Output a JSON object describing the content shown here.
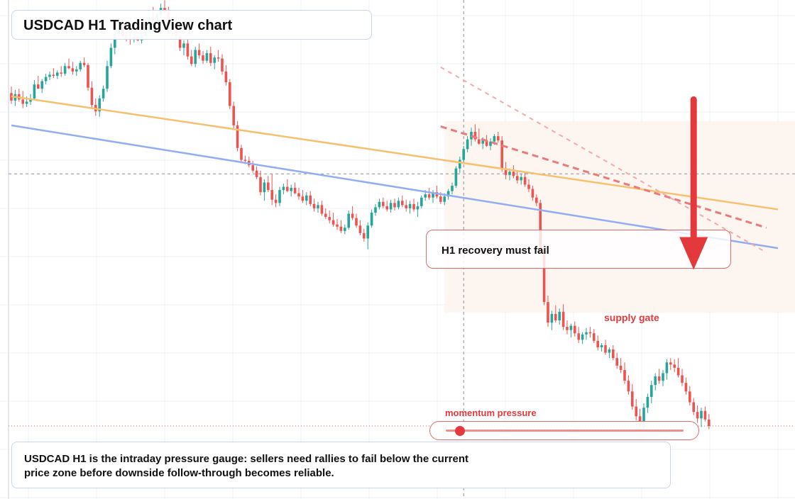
{
  "chart_title": "USDCAD H1 TradingView chart",
  "note": "USDCAD H1 is the intraday pressure gauge: sellers need rallies to fail below the current price zone before downside follow-through becomes reliable.",
  "recovery_label": "H1 recovery must fail",
  "supply_label": "supply gate",
  "momentum_label": "momentum pressure",
  "momentum_level": 0.06,
  "colors": {
    "bull": "#26a69a",
    "bear": "#ef5350",
    "orange_line": "#f7c070",
    "blue_line": "#93aef0",
    "annotation_red": "#e3393c",
    "supply_zone": "#fdf3ec",
    "grid": "#eef1f5"
  },
  "chart_data": {
    "type": "candlestick",
    "title": "USDCAD H1 TradingView chart",
    "candles": [
      {
        "o": 13.6,
        "h": 14.2,
        "l": 12.6,
        "c": 12.9
      },
      {
        "o": 12.9,
        "h": 13.9,
        "l": 12.4,
        "c": 13.5
      },
      {
        "o": 13.5,
        "h": 14.0,
        "l": 12.8,
        "c": 13.0
      },
      {
        "o": 13.0,
        "h": 13.8,
        "l": 12.2,
        "c": 12.6
      },
      {
        "o": 12.6,
        "h": 13.3,
        "l": 12.3,
        "c": 12.8
      },
      {
        "o": 12.8,
        "h": 13.5,
        "l": 12.5,
        "c": 13.1
      },
      {
        "o": 13.1,
        "h": 14.8,
        "l": 13.0,
        "c": 14.4
      },
      {
        "o": 14.4,
        "h": 15.2,
        "l": 14.0,
        "c": 14.0
      },
      {
        "o": 14.0,
        "h": 14.9,
        "l": 13.6,
        "c": 14.7
      },
      {
        "o": 14.7,
        "h": 15.4,
        "l": 14.4,
        "c": 15.1
      },
      {
        "o": 15.1,
        "h": 15.6,
        "l": 14.8,
        "c": 15.3
      },
      {
        "o": 15.3,
        "h": 15.9,
        "l": 15.0,
        "c": 15.2
      },
      {
        "o": 15.2,
        "h": 15.7,
        "l": 14.9,
        "c": 15.5
      },
      {
        "o": 15.5,
        "h": 16.1,
        "l": 15.1,
        "c": 15.4
      },
      {
        "o": 15.4,
        "h": 16.4,
        "l": 15.2,
        "c": 16.1
      },
      {
        "o": 16.1,
        "h": 16.8,
        "l": 15.8,
        "c": 15.9
      },
      {
        "o": 15.9,
        "h": 16.5,
        "l": 15.3,
        "c": 15.6
      },
      {
        "o": 15.6,
        "h": 16.1,
        "l": 15.2,
        "c": 15.8
      },
      {
        "o": 15.8,
        "h": 16.6,
        "l": 15.6,
        "c": 16.4
      },
      {
        "o": 16.4,
        "h": 16.9,
        "l": 16.0,
        "c": 16.2
      },
      {
        "o": 16.2,
        "h": 16.4,
        "l": 13.8,
        "c": 14.1
      },
      {
        "o": 14.1,
        "h": 14.7,
        "l": 12.2,
        "c": 12.5
      },
      {
        "o": 12.5,
        "h": 13.1,
        "l": 11.5,
        "c": 11.9
      },
      {
        "o": 11.9,
        "h": 13.4,
        "l": 11.4,
        "c": 13.1
      },
      {
        "o": 13.1,
        "h": 14.3,
        "l": 12.8,
        "c": 14.0
      },
      {
        "o": 14.0,
        "h": 16.6,
        "l": 13.7,
        "c": 16.1
      },
      {
        "o": 16.1,
        "h": 18.2,
        "l": 15.9,
        "c": 17.8
      },
      {
        "o": 17.8,
        "h": 19.6,
        "l": 17.2,
        "c": 19.1
      },
      {
        "o": 19.1,
        "h": 20.3,
        "l": 18.7,
        "c": 19.6
      },
      {
        "o": 19.6,
        "h": 20.4,
        "l": 18.8,
        "c": 18.9
      },
      {
        "o": 18.9,
        "h": 19.5,
        "l": 18.4,
        "c": 18.7
      },
      {
        "o": 18.7,
        "h": 19.2,
        "l": 18.1,
        "c": 18.6
      },
      {
        "o": 18.6,
        "h": 19.1,
        "l": 18.3,
        "c": 18.8
      },
      {
        "o": 18.8,
        "h": 19.3,
        "l": 18.4,
        "c": 18.5
      },
      {
        "o": 18.5,
        "h": 19.2,
        "l": 18.2,
        "c": 18.9
      },
      {
        "o": 18.9,
        "h": 19.8,
        "l": 18.6,
        "c": 19.5
      },
      {
        "o": 19.5,
        "h": 20.8,
        "l": 19.2,
        "c": 20.5
      },
      {
        "o": 20.5,
        "h": 21.6,
        "l": 20.0,
        "c": 20.3
      },
      {
        "o": 20.3,
        "h": 21.1,
        "l": 19.9,
        "c": 20.9
      },
      {
        "o": 20.9,
        "h": 21.9,
        "l": 20.5,
        "c": 21.5
      },
      {
        "o": 21.5,
        "h": 22.2,
        "l": 20.9,
        "c": 21.1
      },
      {
        "o": 21.1,
        "h": 21.6,
        "l": 19.3,
        "c": 19.6
      },
      {
        "o": 19.6,
        "h": 20.4,
        "l": 18.8,
        "c": 20.1
      },
      {
        "o": 20.1,
        "h": 20.8,
        "l": 18.6,
        "c": 18.9
      },
      {
        "o": 18.9,
        "h": 19.8,
        "l": 17.5,
        "c": 17.8
      },
      {
        "o": 17.8,
        "h": 18.5,
        "l": 17.1,
        "c": 18.2
      },
      {
        "o": 18.2,
        "h": 18.7,
        "l": 16.7,
        "c": 17.0
      },
      {
        "o": 17.0,
        "h": 17.6,
        "l": 16.1,
        "c": 16.3
      },
      {
        "o": 16.3,
        "h": 17.9,
        "l": 16.0,
        "c": 17.6
      },
      {
        "o": 17.6,
        "h": 18.2,
        "l": 16.8,
        "c": 17.1
      },
      {
        "o": 17.1,
        "h": 17.5,
        "l": 16.3,
        "c": 16.6
      },
      {
        "o": 16.6,
        "h": 17.6,
        "l": 16.4,
        "c": 17.3
      },
      {
        "o": 17.3,
        "h": 17.9,
        "l": 16.1,
        "c": 16.4
      },
      {
        "o": 16.4,
        "h": 17.1,
        "l": 15.8,
        "c": 16.9
      },
      {
        "o": 16.9,
        "h": 17.6,
        "l": 16.5,
        "c": 16.8
      },
      {
        "o": 16.8,
        "h": 17.2,
        "l": 15.3,
        "c": 15.6
      },
      {
        "o": 15.6,
        "h": 16.2,
        "l": 14.3,
        "c": 14.6
      },
      {
        "o": 14.6,
        "h": 14.9,
        "l": 12.1,
        "c": 12.4
      },
      {
        "o": 12.4,
        "h": 12.8,
        "l": 10.3,
        "c": 10.6
      },
      {
        "o": 10.6,
        "h": 11.0,
        "l": 8.2,
        "c": 8.5
      },
      {
        "o": 8.5,
        "h": 8.8,
        "l": 7.1,
        "c": 7.4
      },
      {
        "o": 7.4,
        "h": 7.8,
        "l": 7.0,
        "c": 7.3
      },
      {
        "o": 7.3,
        "h": 7.7,
        "l": 6.7,
        "c": 6.9
      },
      {
        "o": 6.9,
        "h": 7.3,
        "l": 6.2,
        "c": 6.4
      },
      {
        "o": 6.4,
        "h": 6.8,
        "l": 5.6,
        "c": 5.8
      },
      {
        "o": 5.8,
        "h": 6.4,
        "l": 4.1,
        "c": 4.4
      },
      {
        "o": 4.4,
        "h": 5.6,
        "l": 3.6,
        "c": 5.3
      },
      {
        "o": 5.3,
        "h": 5.9,
        "l": 4.4,
        "c": 4.6
      },
      {
        "o": 4.6,
        "h": 6.1,
        "l": 3.2,
        "c": 3.7
      },
      {
        "o": 3.7,
        "h": 4.2,
        "l": 3.0,
        "c": 3.4
      },
      {
        "o": 3.4,
        "h": 4.9,
        "l": 3.1,
        "c": 4.6
      },
      {
        "o": 4.6,
        "h": 5.2,
        "l": 4.2,
        "c": 4.9
      },
      {
        "o": 4.9,
        "h": 5.6,
        "l": 4.4,
        "c": 4.5
      },
      {
        "o": 4.5,
        "h": 5.1,
        "l": 4.0,
        "c": 4.8
      },
      {
        "o": 4.8,
        "h": 5.3,
        "l": 4.2,
        "c": 4.3
      },
      {
        "o": 4.3,
        "h": 4.8,
        "l": 3.7,
        "c": 4.0
      },
      {
        "o": 4.0,
        "h": 4.6,
        "l": 3.4,
        "c": 3.6
      },
      {
        "o": 3.6,
        "h": 4.4,
        "l": 3.2,
        "c": 4.1
      },
      {
        "o": 4.1,
        "h": 4.5,
        "l": 3.1,
        "c": 3.3
      },
      {
        "o": 3.3,
        "h": 3.8,
        "l": 2.6,
        "c": 2.9
      },
      {
        "o": 2.9,
        "h": 3.5,
        "l": 2.5,
        "c": 3.2
      },
      {
        "o": 3.2,
        "h": 3.6,
        "l": 2.2,
        "c": 2.4
      },
      {
        "o": 2.4,
        "h": 2.9,
        "l": 1.9,
        "c": 2.1
      },
      {
        "o": 2.1,
        "h": 2.7,
        "l": 1.5,
        "c": 1.8
      },
      {
        "o": 1.8,
        "h": 2.5,
        "l": 1.2,
        "c": 1.4
      },
      {
        "o": 1.4,
        "h": 1.9,
        "l": 0.9,
        "c": 1.2
      },
      {
        "o": 1.2,
        "h": 1.8,
        "l": 0.6,
        "c": 0.8
      },
      {
        "o": 0.8,
        "h": 1.4,
        "l": 0.5,
        "c": 1.1
      },
      {
        "o": 1.1,
        "h": 2.7,
        "l": 0.9,
        "c": 2.4
      },
      {
        "o": 2.4,
        "h": 3.1,
        "l": 1.8,
        "c": 2.0
      },
      {
        "o": 2.0,
        "h": 2.4,
        "l": 1.1,
        "c": 1.3
      },
      {
        "o": 1.3,
        "h": 1.8,
        "l": 0.4,
        "c": 0.6
      },
      {
        "o": 0.6,
        "h": 1.0,
        "l": -0.2,
        "c": 0.1
      },
      {
        "o": 0.1,
        "h": 1.6,
        "l": -0.9,
        "c": 1.3
      },
      {
        "o": 1.3,
        "h": 2.8,
        "l": 1.1,
        "c": 2.5
      },
      {
        "o": 2.5,
        "h": 3.3,
        "l": 2.2,
        "c": 3.0
      },
      {
        "o": 3.0,
        "h": 3.8,
        "l": 2.8,
        "c": 3.5
      },
      {
        "o": 3.5,
        "h": 3.9,
        "l": 2.9,
        "c": 3.1
      },
      {
        "o": 3.1,
        "h": 3.6,
        "l": 2.6,
        "c": 2.8
      },
      {
        "o": 2.8,
        "h": 3.7,
        "l": 2.5,
        "c": 3.4
      },
      {
        "o": 3.4,
        "h": 3.8,
        "l": 2.7,
        "c": 3.0
      },
      {
        "o": 3.0,
        "h": 3.9,
        "l": 2.8,
        "c": 3.6
      },
      {
        "o": 3.6,
        "h": 4.1,
        "l": 3.0,
        "c": 3.2
      },
      {
        "o": 3.2,
        "h": 3.7,
        "l": 2.6,
        "c": 2.9
      },
      {
        "o": 2.9,
        "h": 3.6,
        "l": 2.4,
        "c": 3.3
      },
      {
        "o": 3.3,
        "h": 3.8,
        "l": 2.6,
        "c": 2.8
      },
      {
        "o": 2.8,
        "h": 3.5,
        "l": 2.1,
        "c": 3.1
      },
      {
        "o": 3.1,
        "h": 4.1,
        "l": 2.9,
        "c": 3.9
      },
      {
        "o": 3.9,
        "h": 4.6,
        "l": 3.6,
        "c": 4.2
      },
      {
        "o": 4.2,
        "h": 4.8,
        "l": 3.7,
        "c": 3.9
      },
      {
        "o": 3.9,
        "h": 4.6,
        "l": 3.4,
        "c": 4.4
      },
      {
        "o": 4.4,
        "h": 5.0,
        "l": 3.8,
        "c": 4.0
      },
      {
        "o": 4.0,
        "h": 4.4,
        "l": 3.3,
        "c": 3.5
      },
      {
        "o": 3.5,
        "h": 4.3,
        "l": 3.2,
        "c": 4.0
      },
      {
        "o": 4.0,
        "h": 4.7,
        "l": 3.7,
        "c": 4.5
      },
      {
        "o": 4.5,
        "h": 5.3,
        "l": 4.2,
        "c": 5.0
      },
      {
        "o": 5.0,
        "h": 6.8,
        "l": 4.8,
        "c": 6.6
      },
      {
        "o": 6.6,
        "h": 7.7,
        "l": 6.2,
        "c": 7.4
      },
      {
        "o": 7.4,
        "h": 8.7,
        "l": 7.1,
        "c": 8.4
      },
      {
        "o": 8.4,
        "h": 9.6,
        "l": 8.1,
        "c": 9.3
      },
      {
        "o": 9.3,
        "h": 10.4,
        "l": 8.7,
        "c": 10.0
      },
      {
        "o": 10.0,
        "h": 10.7,
        "l": 9.1,
        "c": 9.3
      },
      {
        "o": 9.3,
        "h": 10.3,
        "l": 8.8,
        "c": 8.9
      },
      {
        "o": 8.9,
        "h": 9.5,
        "l": 8.4,
        "c": 9.2
      },
      {
        "o": 9.2,
        "h": 9.7,
        "l": 8.6,
        "c": 8.7
      },
      {
        "o": 8.7,
        "h": 9.4,
        "l": 8.3,
        "c": 9.1
      },
      {
        "o": 9.1,
        "h": 9.8,
        "l": 8.8,
        "c": 9.6
      },
      {
        "o": 9.6,
        "h": 10.0,
        "l": 9.0,
        "c": 9.2
      },
      {
        "o": 9.2,
        "h": 9.6,
        "l": 6.3,
        "c": 6.6
      },
      {
        "o": 6.6,
        "h": 7.2,
        "l": 5.6,
        "c": 6.0
      },
      {
        "o": 6.0,
        "h": 6.6,
        "l": 5.5,
        "c": 6.3
      },
      {
        "o": 6.3,
        "h": 6.9,
        "l": 5.7,
        "c": 5.9
      },
      {
        "o": 5.9,
        "h": 6.4,
        "l": 5.2,
        "c": 5.5
      },
      {
        "o": 5.5,
        "h": 6.1,
        "l": 5.1,
        "c": 5.8
      },
      {
        "o": 5.8,
        "h": 6.2,
        "l": 4.9,
        "c": 5.1
      },
      {
        "o": 5.1,
        "h": 5.6,
        "l": 4.4,
        "c": 4.7
      },
      {
        "o": 4.7,
        "h": 5.0,
        "l": 3.6,
        "c": 3.9
      },
      {
        "o": 3.9,
        "h": 4.2,
        "l": 3.1,
        "c": 3.4
      },
      {
        "o": 3.4,
        "h": 3.7,
        "l": -1.3,
        "c": -1.1
      },
      {
        "o": -1.1,
        "h": -0.7,
        "l": -6.1,
        "c": -5.8
      },
      {
        "o": -5.8,
        "h": -5.2,
        "l": -8.1,
        "c": -7.7
      },
      {
        "o": -7.7,
        "h": -6.6,
        "l": -8.4,
        "c": -6.9
      },
      {
        "o": -6.9,
        "h": -6.1,
        "l": -7.7,
        "c": -7.5
      },
      {
        "o": -7.5,
        "h": -6.4,
        "l": -7.9,
        "c": -6.7
      },
      {
        "o": -6.7,
        "h": -6.0,
        "l": -8.4,
        "c": -8.1
      },
      {
        "o": -8.1,
        "h": -7.5,
        "l": -8.8,
        "c": -8.4
      },
      {
        "o": -8.4,
        "h": -7.8,
        "l": -9.1,
        "c": -8.0
      },
      {
        "o": -8.0,
        "h": -7.6,
        "l": -9.0,
        "c": -8.7
      },
      {
        "o": -8.7,
        "h": -8.1,
        "l": -9.6,
        "c": -9.3
      },
      {
        "o": -9.3,
        "h": -8.6,
        "l": -9.7,
        "c": -8.8
      },
      {
        "o": -8.8,
        "h": -8.2,
        "l": -9.3,
        "c": -8.6
      },
      {
        "o": -8.6,
        "h": -8.1,
        "l": -9.1,
        "c": -8.7
      },
      {
        "o": -8.7,
        "h": -8.3,
        "l": -9.6,
        "c": -9.4
      },
      {
        "o": -9.4,
        "h": -8.9,
        "l": -10.3,
        "c": -10.0
      },
      {
        "o": -10.0,
        "h": -9.6,
        "l": -10.4,
        "c": -9.8
      },
      {
        "o": -9.8,
        "h": -9.3,
        "l": -10.7,
        "c": -10.5
      },
      {
        "o": -10.5,
        "h": -10.0,
        "l": -11.0,
        "c": -10.2
      },
      {
        "o": -10.2,
        "h": -9.8,
        "l": -11.2,
        "c": -11.0
      },
      {
        "o": -11.0,
        "h": -10.5,
        "l": -12.0,
        "c": -11.7
      },
      {
        "o": -11.7,
        "h": -11.0,
        "l": -12.4,
        "c": -12.1
      },
      {
        "o": -12.1,
        "h": -11.4,
        "l": -13.4,
        "c": -13.1
      },
      {
        "o": -13.1,
        "h": -12.6,
        "l": -14.4,
        "c": -14.1
      },
      {
        "o": -14.1,
        "h": -13.4,
        "l": -15.8,
        "c": -15.5
      },
      {
        "o": -15.5,
        "h": -14.8,
        "l": -16.8,
        "c": -16.4
      },
      {
        "o": -16.4,
        "h": -15.7,
        "l": -17.3,
        "c": -16.9
      },
      {
        "o": -16.9,
        "h": -15.2,
        "l": -17.6,
        "c": -15.6
      },
      {
        "o": -15.6,
        "h": -14.3,
        "l": -16.1,
        "c": -14.6
      },
      {
        "o": -14.6,
        "h": -13.1,
        "l": -15.2,
        "c": -13.5
      },
      {
        "o": -13.5,
        "h": -12.4,
        "l": -14.0,
        "c": -12.7
      },
      {
        "o": -12.7,
        "h": -12.0,
        "l": -13.4,
        "c": -13.1
      },
      {
        "o": -13.1,
        "h": -12.1,
        "l": -13.6,
        "c": -12.4
      },
      {
        "o": -12.4,
        "h": -11.1,
        "l": -13.0,
        "c": -11.4
      },
      {
        "o": -11.4,
        "h": -11.0,
        "l": -12.1,
        "c": -11.6
      },
      {
        "o": -11.6,
        "h": -11.1,
        "l": -12.3,
        "c": -11.9
      },
      {
        "o": -11.9,
        "h": -11.0,
        "l": -12.8,
        "c": -12.6
      },
      {
        "o": -12.6,
        "h": -12.0,
        "l": -13.6,
        "c": -13.3
      },
      {
        "o": -13.3,
        "h": -12.8,
        "l": -14.4,
        "c": -14.1
      },
      {
        "o": -14.1,
        "h": -13.6,
        "l": -15.4,
        "c": -15.1
      },
      {
        "o": -15.1,
        "h": -14.7,
        "l": -16.3,
        "c": -16.0
      },
      {
        "o": -16.0,
        "h": -15.4,
        "l": -17.0,
        "c": -16.6
      },
      {
        "o": -16.6,
        "h": -15.6,
        "l": -17.4,
        "c": -15.9
      },
      {
        "o": -15.9,
        "h": -15.5,
        "l": -16.9,
        "c": -16.7
      },
      {
        "o": -16.7,
        "h": -16.2,
        "l": -17.6,
        "c": -17.3
      }
    ],
    "overlays": [
      {
        "style": "solid",
        "color": "#f7c070",
        "points": [
          [
            0,
            13.3
          ],
          [
            200,
            2.8
          ]
        ]
      },
      {
        "style": "solid",
        "color": "#93aef0",
        "points": [
          [
            0,
            10.6
          ],
          [
            200,
            -0.8
          ]
        ]
      },
      {
        "style": "dashed-light",
        "color": "#f3aaaa",
        "points": [
          [
            112,
            16.0
          ],
          [
            197,
            -1.2
          ]
        ]
      },
      {
        "style": "dashed",
        "color": "#e97b7b",
        "points": [
          [
            112,
            10.5
          ],
          [
            197,
            1.1
          ]
        ]
      }
    ],
    "crosshair": {
      "x": 118,
      "y": 6.1
    },
    "supply_zone": {
      "x": [
        113,
        206
      ],
      "y": [
        -6.8,
        11.0
      ]
    },
    "arrow": {
      "x": 178,
      "from": 13.0,
      "to": -2.8
    },
    "last_price": -17.3
  }
}
